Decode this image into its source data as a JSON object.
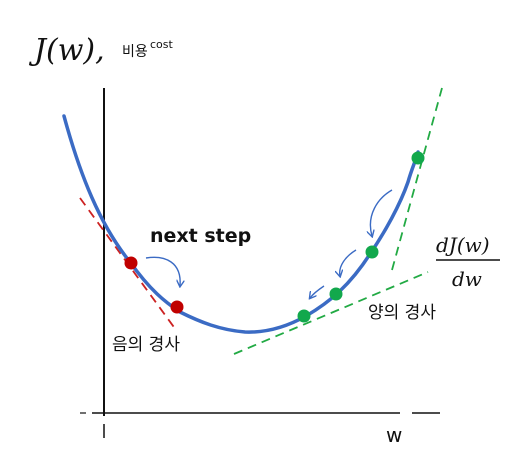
{
  "y_label_math": "J(w),",
  "y_label_korean": "비용",
  "y_label_cost": "cost",
  "x_label": "w",
  "derivative": {
    "numerator": "dJ(w)",
    "denominator": "dw"
  },
  "annotations": {
    "next_step": "next step",
    "negative_slope": "음의 경사",
    "positive_slope": "양의 경사"
  },
  "colors": {
    "curve": "#3b6bc4",
    "red_point": "#c00000",
    "green_point": "#12a84c",
    "red_tangent": "#cc2222",
    "green_tangent": "#22aa44",
    "arrow": "#3b6bc4",
    "axis": "#111111"
  }
}
